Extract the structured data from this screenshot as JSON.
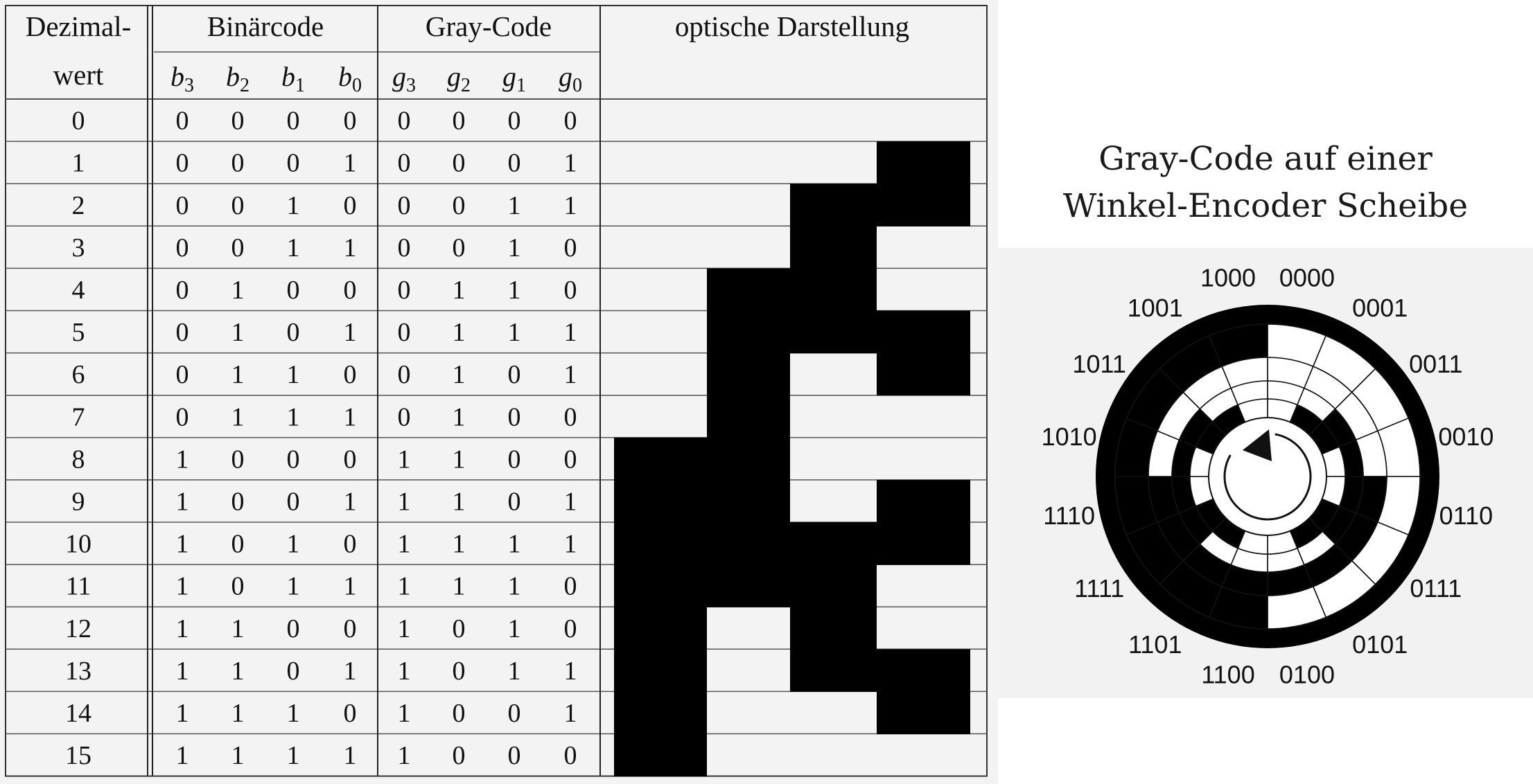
{
  "table": {
    "header": {
      "decimal_line1": "Dezimal-",
      "decimal_line2": "wert",
      "binary": "Binärcode",
      "gray": "Gray-Code",
      "optical": "optische Darstellung"
    },
    "binary_bits": [
      {
        "letter": "b",
        "index": "3"
      },
      {
        "letter": "b",
        "index": "2"
      },
      {
        "letter": "b",
        "index": "1"
      },
      {
        "letter": "b",
        "index": "0"
      }
    ],
    "gray_bits": [
      {
        "letter": "g",
        "index": "3"
      },
      {
        "letter": "g",
        "index": "2"
      },
      {
        "letter": "g",
        "index": "1"
      },
      {
        "letter": "g",
        "index": "0"
      }
    ],
    "rows": [
      {
        "dec": "0",
        "bin": [
          "0",
          "0",
          "0",
          "0"
        ],
        "gray": [
          "0",
          "0",
          "0",
          "0"
        ]
      },
      {
        "dec": "1",
        "bin": [
          "0",
          "0",
          "0",
          "1"
        ],
        "gray": [
          "0",
          "0",
          "0",
          "1"
        ]
      },
      {
        "dec": "2",
        "bin": [
          "0",
          "0",
          "1",
          "0"
        ],
        "gray": [
          "0",
          "0",
          "1",
          "1"
        ]
      },
      {
        "dec": "3",
        "bin": [
          "0",
          "0",
          "1",
          "1"
        ],
        "gray": [
          "0",
          "0",
          "1",
          "0"
        ]
      },
      {
        "dec": "4",
        "bin": [
          "0",
          "1",
          "0",
          "0"
        ],
        "gray": [
          "0",
          "1",
          "1",
          "0"
        ]
      },
      {
        "dec": "5",
        "bin": [
          "0",
          "1",
          "0",
          "1"
        ],
        "gray": [
          "0",
          "1",
          "1",
          "1"
        ]
      },
      {
        "dec": "6",
        "bin": [
          "0",
          "1",
          "1",
          "0"
        ],
        "gray": [
          "0",
          "1",
          "0",
          "1"
        ]
      },
      {
        "dec": "7",
        "bin": [
          "0",
          "1",
          "1",
          "1"
        ],
        "gray": [
          "0",
          "1",
          "0",
          "0"
        ]
      },
      {
        "dec": "8",
        "bin": [
          "1",
          "0",
          "0",
          "0"
        ],
        "gray": [
          "1",
          "1",
          "0",
          "0"
        ]
      },
      {
        "dec": "9",
        "bin": [
          "1",
          "0",
          "0",
          "1"
        ],
        "gray": [
          "1",
          "1",
          "0",
          "1"
        ]
      },
      {
        "dec": "10",
        "bin": [
          "1",
          "0",
          "1",
          "0"
        ],
        "gray": [
          "1",
          "1",
          "1",
          "1"
        ]
      },
      {
        "dec": "11",
        "bin": [
          "1",
          "0",
          "1",
          "1"
        ],
        "gray": [
          "1",
          "1",
          "1",
          "0"
        ]
      },
      {
        "dec": "12",
        "bin": [
          "1",
          "1",
          "0",
          "0"
        ],
        "gray": [
          "1",
          "0",
          "1",
          "0"
        ]
      },
      {
        "dec": "13",
        "bin": [
          "1",
          "1",
          "0",
          "1"
        ],
        "gray": [
          "1",
          "0",
          "1",
          "1"
        ]
      },
      {
        "dec": "14",
        "bin": [
          "1",
          "1",
          "1",
          "0"
        ],
        "gray": [
          "1",
          "0",
          "0",
          "1"
        ]
      },
      {
        "dec": "15",
        "bin": [
          "1",
          "1",
          "1",
          "1"
        ],
        "gray": [
          "1",
          "0",
          "0",
          "0"
        ]
      }
    ]
  },
  "encoder": {
    "title_line1": "Gray-Code auf einer",
    "title_line2": "Winkel-Encoder Scheibe",
    "sector_labels": [
      "0000",
      "0001",
      "0011",
      "0010",
      "0110",
      "0111",
      "0101",
      "0100",
      "1100",
      "1101",
      "1111",
      "1110",
      "1010",
      "1011",
      "1001",
      "1000"
    ]
  },
  "colors": {
    "fill": "#000000",
    "background": "#f3f3f3",
    "grid": "#555555"
  }
}
